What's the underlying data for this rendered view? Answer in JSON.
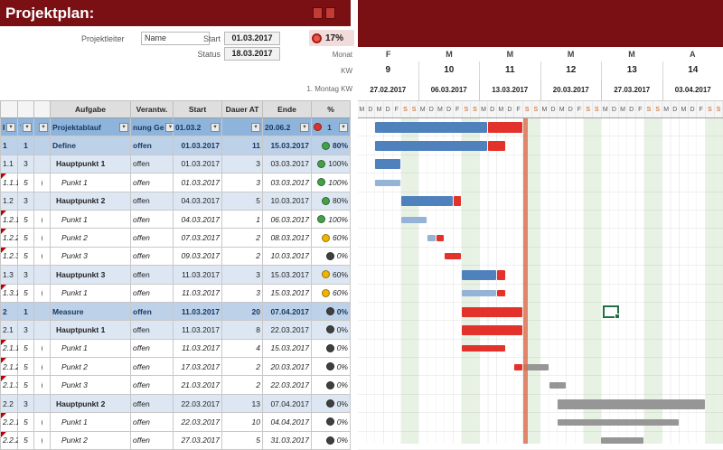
{
  "title": "Projektplan:",
  "colors": {
    "maroon": "#7A1014",
    "weekend": "#E4F0DF",
    "status_line": "#E06A4C",
    "bars": {
      "blue": "#4F81BD",
      "lblue": "#95B3D7",
      "red": "#E2322B",
      "gray": "#969696"
    },
    "kpi": {
      "red": "#D9342B",
      "green": "#44A047",
      "yellow": "#F0B400",
      "dark": "#3F3F3F"
    }
  },
  "info": {
    "projektleiter_label": "Projektleiter",
    "name_label": "Name",
    "start_label": "Start",
    "start_value": "01.03.2017",
    "status_label": "Status",
    "status_value": "18.03.2017",
    "progress": "17%",
    "monat_label": "Monat",
    "kw_label": "KW",
    "montag_label": "1. Montag KW"
  },
  "timeline": {
    "months": [
      "F",
      "M",
      "M",
      "M",
      "M",
      "A"
    ],
    "weeks": [
      "9",
      "10",
      "11",
      "12",
      "13",
      "14"
    ],
    "week_dates": [
      "27.02.2017",
      "06.03.2017",
      "13.03.2017",
      "20.03.2017",
      "27.03.2017",
      "03.04.2017"
    ],
    "day_letters": [
      "M",
      "D",
      "M",
      "D",
      "F",
      "S",
      "S"
    ],
    "num_weeks": 6,
    "status_day": 19
  },
  "table_headers": {
    "aufgabe": "Aufgabe",
    "verantw": "Verantw.",
    "start": "Start",
    "dauer": "Dauer AT",
    "ende": "Ende",
    "pct": "%"
  },
  "selection": {
    "row_index": 10,
    "start_day": 28.2,
    "span_days": 1.8
  },
  "rows": [
    {
      "p": "P",
      "lvl": "T",
      "j": "",
      "aufgabe": "Projektablauf",
      "verantw": "nung Ge",
      "start": "01.03.2",
      "dauer": "",
      "ende": "20.06.2",
      "pct": "1",
      "pct_color": "red",
      "level": 0,
      "marker": false,
      "bars": [
        {
          "s": 2,
          "e": 15,
          "c": "blue"
        },
        {
          "s": 15,
          "e": 19,
          "c": "red"
        }
      ]
    },
    {
      "p": "1",
      "lvl": "1",
      "j": "",
      "aufgabe": "Define",
      "verantw": "offen",
      "start": "01.03.2017",
      "dauer": "11",
      "ende": "15.03.2017",
      "pct": "80%",
      "pct_color": "green",
      "level": 1,
      "marker": false,
      "bars": [
        {
          "s": 2,
          "e": 15,
          "c": "blue"
        },
        {
          "s": 15,
          "e": 17,
          "c": "red"
        }
      ]
    },
    {
      "p": "1.1",
      "lvl": "3",
      "j": "",
      "aufgabe": "Hauptpunkt 1",
      "verantw": "offen",
      "start": "01.03.2017",
      "dauer": "3",
      "ende": "03.03.2017",
      "pct": "100%",
      "pct_color": "green",
      "level": 3,
      "marker": false,
      "bars": [
        {
          "s": 2,
          "e": 5,
          "c": "blue"
        }
      ]
    },
    {
      "p": "1.1.1",
      "lvl": "5",
      "j": "j",
      "aufgabe": "Punkt 1",
      "verantw": "offen",
      "start": "01.03.2017",
      "dauer": "3",
      "ende": "03.03.2017",
      "pct": "100%",
      "pct_color": "green",
      "level": 5,
      "marker": true,
      "bars": [
        {
          "s": 2,
          "e": 5,
          "c": "lblue"
        }
      ]
    },
    {
      "p": "1.2",
      "lvl": "3",
      "j": "",
      "aufgabe": "Hauptpunkt 2",
      "verantw": "offen",
      "start": "04.03.2017",
      "dauer": "5",
      "ende": "10.03.2017",
      "pct": "80%",
      "pct_color": "green",
      "level": 3,
      "marker": false,
      "bars": [
        {
          "s": 5,
          "e": 11,
          "c": "blue"
        },
        {
          "s": 11,
          "e": 12,
          "c": "red"
        }
      ]
    },
    {
      "p": "1.2.1",
      "lvl": "5",
      "j": "j",
      "aufgabe": "Punkt 1",
      "verantw": "offen",
      "start": "04.03.2017",
      "dauer": "1",
      "ende": "06.03.2017",
      "pct": "100%",
      "pct_color": "green",
      "level": 5,
      "marker": true,
      "bars": [
        {
          "s": 5,
          "e": 8,
          "c": "lblue"
        }
      ]
    },
    {
      "p": "1.2.2",
      "lvl": "5",
      "j": "j",
      "aufgabe": "Punkt 2",
      "verantw": "offen",
      "start": "07.03.2017",
      "dauer": "2",
      "ende": "08.03.2017",
      "pct": "60%",
      "pct_color": "yellow",
      "level": 5,
      "marker": true,
      "bars": [
        {
          "s": 8,
          "e": 9,
          "c": "lblue"
        },
        {
          "s": 9,
          "e": 10,
          "c": "red"
        }
      ]
    },
    {
      "p": "1.2.3",
      "lvl": "5",
      "j": "j",
      "aufgabe": "Punkt 3",
      "verantw": "offen",
      "start": "09.03.2017",
      "dauer": "2",
      "ende": "10.03.2017",
      "pct": "0%",
      "pct_color": "dark",
      "level": 5,
      "marker": true,
      "bars": [
        {
          "s": 10,
          "e": 12,
          "c": "red"
        }
      ]
    },
    {
      "p": "1.3",
      "lvl": "3",
      "j": "",
      "aufgabe": "Hauptpunkt 3",
      "verantw": "offen",
      "start": "11.03.2017",
      "dauer": "3",
      "ende": "15.03.2017",
      "pct": "60%",
      "pct_color": "yellow",
      "level": 3,
      "marker": false,
      "bars": [
        {
          "s": 12,
          "e": 16,
          "c": "blue"
        },
        {
          "s": 16,
          "e": 17,
          "c": "red"
        }
      ]
    },
    {
      "p": "1.3.1",
      "lvl": "5",
      "j": "j",
      "aufgabe": "Punkt 1",
      "verantw": "offen",
      "start": "11.03.2017",
      "dauer": "3",
      "ende": "15.03.2017",
      "pct": "60%",
      "pct_color": "yellow",
      "level": 5,
      "marker": true,
      "bars": [
        {
          "s": 12,
          "e": 16,
          "c": "lblue"
        },
        {
          "s": 16,
          "e": 17,
          "c": "red"
        }
      ]
    },
    {
      "p": "2",
      "lvl": "1",
      "j": "",
      "aufgabe": "Measure",
      "verantw": "offen",
      "start": "11.03.2017",
      "dauer": "20",
      "ende": "07.04.2017",
      "pct": "0%",
      "pct_color": "dark",
      "level": 1,
      "marker": false,
      "bars": [
        {
          "s": 12,
          "e": 19,
          "c": "red"
        }
      ]
    },
    {
      "p": "2.1",
      "lvl": "3",
      "j": "",
      "aufgabe": "Hauptpunkt 1",
      "verantw": "offen",
      "start": "11.03.2017",
      "dauer": "8",
      "ende": "22.03.2017",
      "pct": "0%",
      "pct_color": "dark",
      "level": 3,
      "marker": false,
      "bars": [
        {
          "s": 12,
          "e": 19,
          "c": "red"
        }
      ]
    },
    {
      "p": "2.1.1",
      "lvl": "5",
      "j": "j",
      "aufgabe": "Punkt 1",
      "verantw": "offen",
      "start": "11.03.2017",
      "dauer": "4",
      "ende": "15.03.2017",
      "pct": "0%",
      "pct_color": "dark",
      "level": 5,
      "marker": true,
      "bars": [
        {
          "s": 12,
          "e": 17,
          "c": "red"
        }
      ]
    },
    {
      "p": "2.1.2",
      "lvl": "5",
      "j": "j",
      "aufgabe": "Punkt 2",
      "verantw": "offen",
      "start": "17.03.2017",
      "dauer": "2",
      "ende": "20.03.2017",
      "pct": "0%",
      "pct_color": "dark",
      "level": 5,
      "marker": true,
      "bars": [
        {
          "s": 18,
          "e": 19,
          "c": "red"
        },
        {
          "s": 19,
          "e": 22,
          "c": "gray"
        }
      ]
    },
    {
      "p": "2.1.3",
      "lvl": "5",
      "j": "j",
      "aufgabe": "Punkt 3",
      "verantw": "offen",
      "start": "21.03.2017",
      "dauer": "2",
      "ende": "22.03.2017",
      "pct": "0%",
      "pct_color": "dark",
      "level": 5,
      "marker": true,
      "bars": [
        {
          "s": 22,
          "e": 24,
          "c": "gray"
        }
      ]
    },
    {
      "p": "2.2",
      "lvl": "3",
      "j": "",
      "aufgabe": "Hauptpunkt 2",
      "verantw": "offen",
      "start": "22.03.2017",
      "dauer": "13",
      "ende": "07.04.2017",
      "pct": "0%",
      "pct_color": "dark",
      "level": 3,
      "marker": false,
      "bars": [
        {
          "s": 23,
          "e": 40,
          "c": "gray"
        }
      ]
    },
    {
      "p": "2.2.1",
      "lvl": "5",
      "j": "j",
      "aufgabe": "Punkt 1",
      "verantw": "offen",
      "start": "22.03.2017",
      "dauer": "10",
      "ende": "04.04.2017",
      "pct": "0%",
      "pct_color": "dark",
      "level": 5,
      "marker": true,
      "bars": [
        {
          "s": 23,
          "e": 37,
          "c": "gray"
        }
      ]
    },
    {
      "p": "2.2.2",
      "lvl": "5",
      "j": "j",
      "aufgabe": "Punkt 2",
      "verantw": "offen",
      "start": "27.03.2017",
      "dauer": "5",
      "ende": "31.03.2017",
      "pct": "0%",
      "pct_color": "dark",
      "level": 5,
      "marker": true,
      "bars": [
        {
          "s": 28,
          "e": 33,
          "c": "gray"
        }
      ]
    }
  ]
}
